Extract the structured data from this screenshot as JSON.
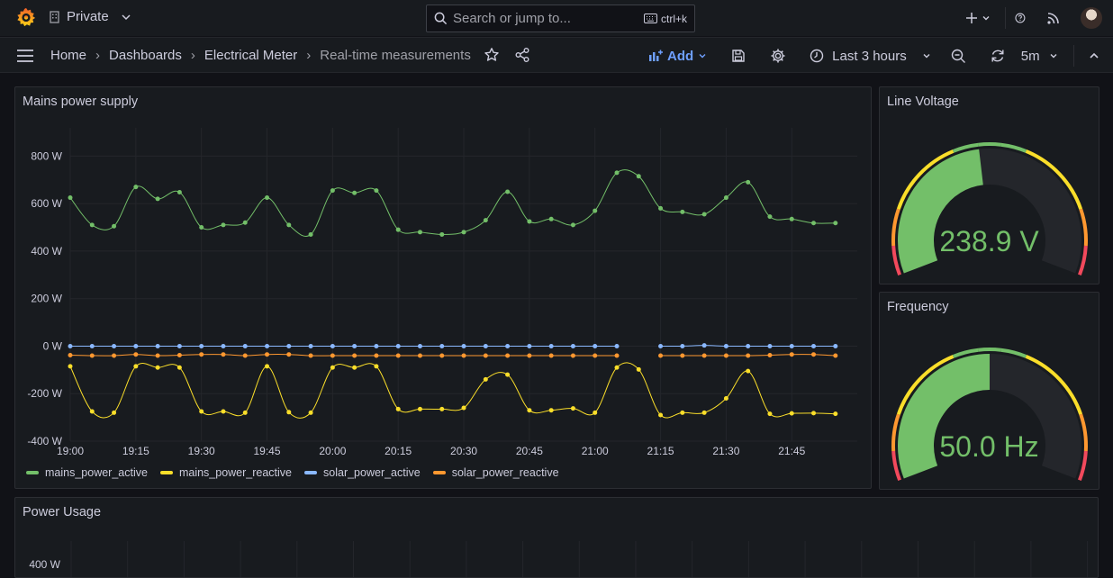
{
  "topbar": {
    "org_label": "Private",
    "search_placeholder": "Search or jump to...",
    "search_shortcut": "ctrl+k"
  },
  "breadcrumbs": {
    "home": "Home",
    "dashboards": "Dashboards",
    "folder": "Electrical Meter",
    "current": "Real-time measurements"
  },
  "toolbar": {
    "add_label": "Add",
    "time_range": "Last 3 hours",
    "refresh_interval": "5m"
  },
  "colors": {
    "accent": "#6e9fff",
    "green": "#73bf69",
    "yellow": "#fade2a",
    "blue": "#8ab8ff",
    "orange": "#ff9830",
    "red": "#f2495c"
  },
  "panels": {
    "mains": {
      "title": "Mains power supply"
    },
    "voltage": {
      "title": "Line Voltage",
      "value": "238.9 V",
      "level": 0.47
    },
    "frequency": {
      "title": "Frequency",
      "value": "50.0 Hz",
      "level": 0.5
    },
    "usage": {
      "title": "Power Usage",
      "first_tick": "400 W"
    }
  },
  "chart_data": {
    "type": "line",
    "title": "Mains power supply",
    "ylim": [
      -400,
      900
    ],
    "yticks": [
      "800 W",
      "600 W",
      "400 W",
      "200 W",
      "0 W",
      "-200 W",
      "-400 W"
    ],
    "xticks": [
      "19:00",
      "19:15",
      "19:30",
      "19:45",
      "20:00",
      "20:15",
      "20:30",
      "20:45",
      "21:00",
      "21:15",
      "21:30",
      "21:45"
    ],
    "x_start": "19:00",
    "x_step_minutes": 5,
    "grid": true,
    "legend": "bottom",
    "series": [
      {
        "name": "mains_power_active",
        "color": "#73bf69",
        "values": [
          625,
          510,
          505,
          670,
          620,
          648,
          500,
          510,
          520,
          625,
          510,
          470,
          655,
          645,
          655,
          490,
          480,
          470,
          480,
          530,
          650,
          525,
          535,
          510,
          570,
          730,
          715,
          580,
          565,
          555,
          625,
          690,
          545,
          535,
          518,
          518
        ]
      },
      {
        "name": "mains_power_reactive",
        "color": "#fade2a",
        "values": [
          -85,
          -275,
          -280,
          -85,
          -90,
          -90,
          -275,
          -275,
          -280,
          -85,
          -278,
          -280,
          -90,
          -90,
          -85,
          -265,
          -265,
          -265,
          -260,
          -140,
          -120,
          -270,
          -270,
          -262,
          -280,
          -90,
          -98,
          -290,
          -280,
          -280,
          -220,
          -105,
          -285,
          -283,
          -282,
          -285
        ]
      },
      {
        "name": "solar_power_active",
        "color": "#8ab8ff",
        "values": [
          0,
          0,
          0,
          0,
          0,
          0,
          0,
          0,
          0,
          0,
          0,
          0,
          0,
          0,
          0,
          0,
          0,
          0,
          0,
          0,
          0,
          0,
          0,
          0,
          0,
          0,
          null,
          0,
          0,
          3,
          0,
          0,
          0,
          0,
          0,
          0
        ]
      },
      {
        "name": "solar_power_reactive",
        "color": "#ff9830",
        "values": [
          -38,
          -40,
          -40,
          -35,
          -40,
          -38,
          -35,
          -35,
          -40,
          -35,
          -35,
          -40,
          -40,
          -40,
          -40,
          -40,
          -40,
          -40,
          -40,
          -40,
          -40,
          -40,
          -40,
          -40,
          -40,
          -40,
          null,
          -40,
          -40,
          -40,
          -40,
          -40,
          -38,
          -35,
          -35,
          -40
        ]
      }
    ]
  }
}
